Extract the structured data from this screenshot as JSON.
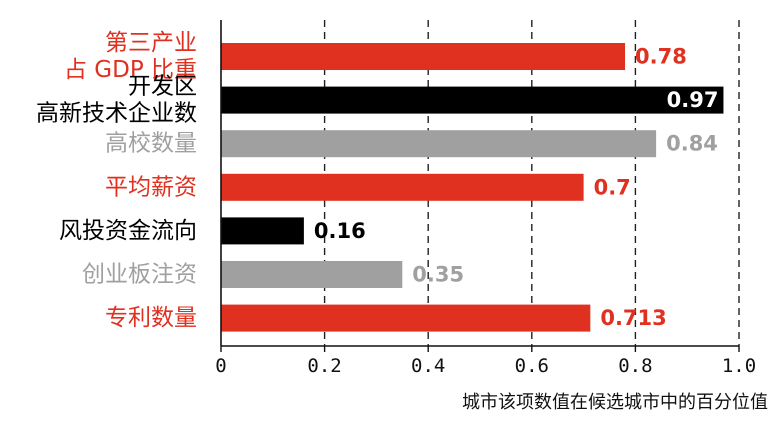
{
  "chart_data": {
    "type": "bar",
    "orientation": "horizontal",
    "categories": [
      [
        "第三产业",
        "占 GDP 比重"
      ],
      [
        "开发区",
        "高新技术企业数"
      ],
      [
        "高校数量"
      ],
      [
        "平均薪资"
      ],
      [
        "风投资金流向"
      ],
      [
        "创业板注资"
      ],
      [
        "专利数量"
      ]
    ],
    "values": [
      0.78,
      0.97,
      0.84,
      0.7,
      0.16,
      0.35,
      0.713
    ],
    "value_labels": [
      "0.78",
      "0.97",
      "0.84",
      "0.7",
      "0.16",
      "0.35",
      "0.713"
    ],
    "colors": [
      "#e03020",
      "#000000",
      "#a0a0a0",
      "#e03020",
      "#000000",
      "#a0a0a0",
      "#e03020"
    ],
    "xlabel": "城市该项数值在候选城市中的百分位值",
    "ylabel": "",
    "title": "",
    "xlim": [
      0,
      1.0
    ],
    "xticks": [
      0,
      0.2,
      0.4,
      0.6,
      0.8,
      1.0
    ],
    "xtick_labels": [
      "0",
      "0.2",
      "0.4",
      "0.6",
      "0.8",
      "1.0"
    ],
    "grid": "vertical dashed",
    "legend": "none"
  }
}
